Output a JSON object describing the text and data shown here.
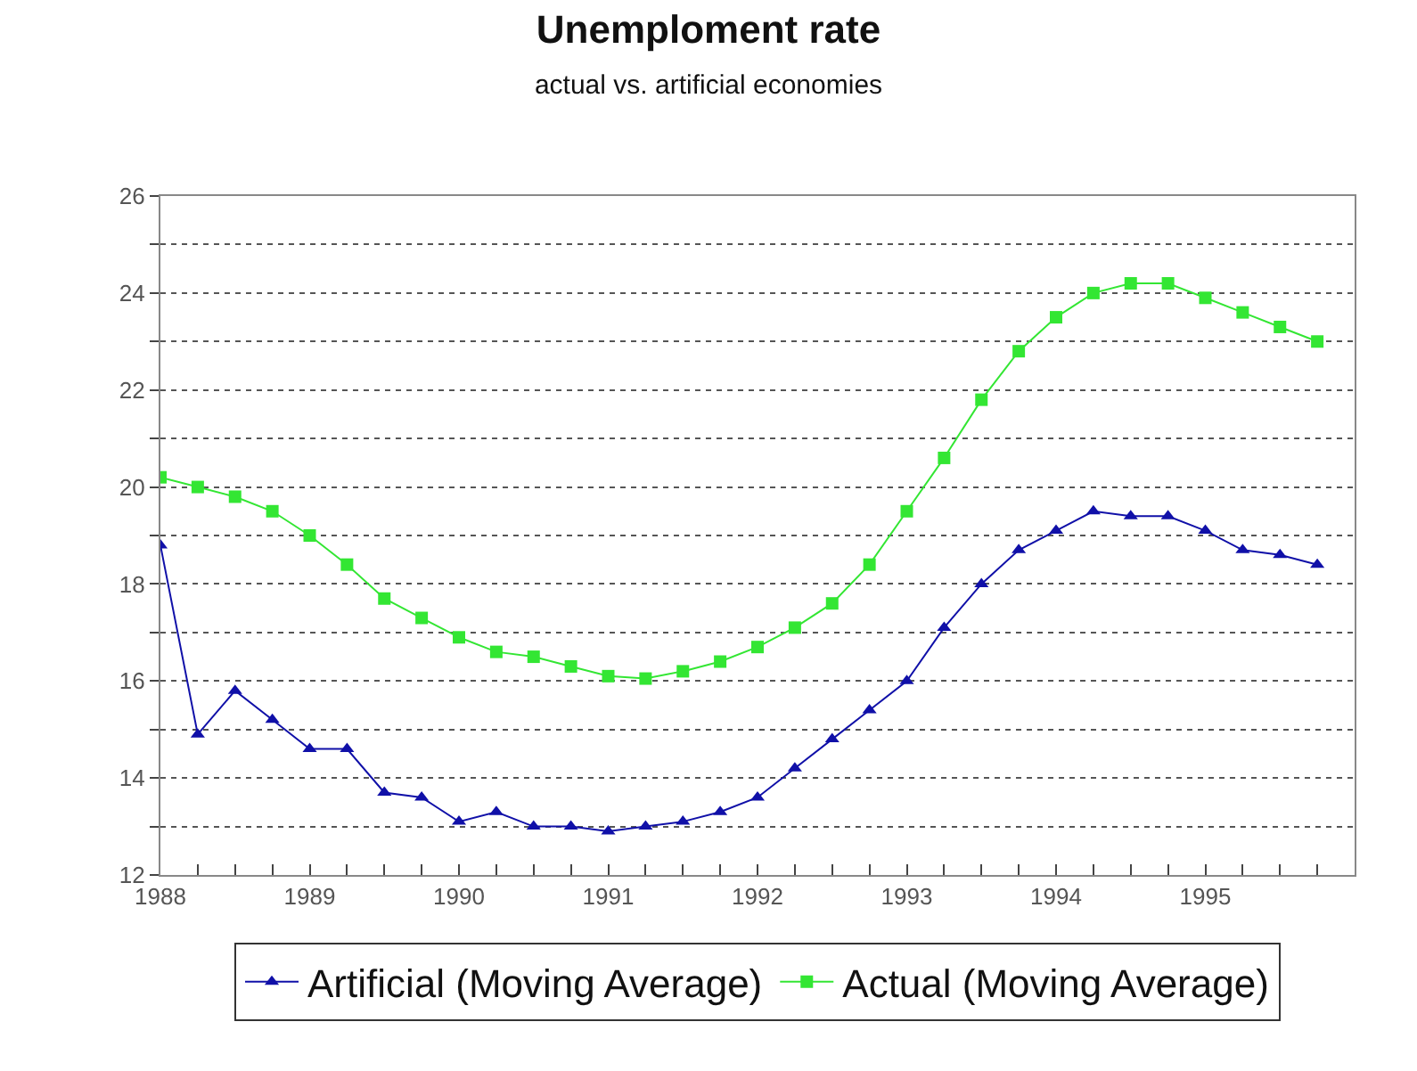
{
  "chart_data": {
    "type": "line",
    "title": "Unemploment rate",
    "subtitle": "actual vs. artificial economies",
    "x": [
      1988,
      1988.25,
      1988.5,
      1988.75,
      1989,
      1989.25,
      1989.5,
      1989.75,
      1990,
      1990.25,
      1990.5,
      1990.75,
      1991,
      1991.25,
      1991.5,
      1991.75,
      1992,
      1992.25,
      1992.5,
      1992.75,
      1993,
      1993.25,
      1993.5,
      1993.75,
      1994,
      1994.25,
      1994.5,
      1994.75,
      1995,
      1995.25,
      1995.5,
      1995.75
    ],
    "series": [
      {
        "name": "Artificial (Moving Average)",
        "color": "#1010a8",
        "marker": "triangle",
        "values": [
          18.8,
          14.9,
          15.8,
          15.2,
          14.6,
          14.6,
          13.7,
          13.6,
          13.1,
          13.3,
          13.0,
          13.0,
          12.9,
          13.0,
          13.1,
          13.3,
          13.6,
          14.2,
          14.8,
          15.4,
          16.0,
          17.1,
          18.0,
          18.7,
          19.1,
          19.5,
          19.4,
          19.4,
          19.1,
          18.7,
          18.6,
          18.4
        ]
      },
      {
        "name": "Actual (Moving Average)",
        "color": "#33e633",
        "marker": "square",
        "values": [
          20.2,
          20.0,
          19.8,
          19.5,
          19.0,
          18.4,
          17.7,
          17.3,
          16.9,
          16.6,
          16.5,
          16.3,
          16.1,
          16.05,
          16.2,
          16.4,
          16.7,
          17.1,
          17.6,
          18.4,
          19.5,
          20.6,
          21.8,
          22.8,
          23.5,
          24.0,
          24.2,
          24.2,
          23.9,
          23.6,
          23.3,
          23.0
        ]
      }
    ],
    "xlim": [
      1988,
      1996
    ],
    "xticks": [
      1988,
      {
        "value": 1988.25,
        "label": null
      },
      {
        "value": 1988.5,
        "label": null
      },
      {
        "value": 1988.75,
        "label": null
      },
      1989,
      {
        "value": 1989.25,
        "label": null
      },
      {
        "value": 1989.5,
        "label": null
      },
      {
        "value": 1989.75,
        "label": null
      },
      1990,
      {
        "value": 1990.25,
        "label": null
      },
      {
        "value": 1990.5,
        "label": null
      },
      {
        "value": 1990.75,
        "label": null
      },
      1991,
      {
        "value": 1991.25,
        "label": null
      },
      {
        "value": 1991.5,
        "label": null
      },
      {
        "value": 1991.75,
        "label": null
      },
      1992,
      {
        "value": 1992.25,
        "label": null
      },
      {
        "value": 1992.5,
        "label": null
      },
      {
        "value": 1992.75,
        "label": null
      },
      1993,
      {
        "value": 1993.25,
        "label": null
      },
      {
        "value": 1993.5,
        "label": null
      },
      {
        "value": 1993.75,
        "label": null
      },
      1994,
      {
        "value": 1994.25,
        "label": null
      },
      {
        "value": 1994.5,
        "label": null
      },
      {
        "value": 1994.75,
        "label": null
      },
      1995,
      {
        "value": 1995.25,
        "label": null
      },
      {
        "value": 1995.5,
        "label": null
      },
      {
        "value": 1995.75,
        "label": null
      }
    ],
    "ylim": [
      12,
      26
    ],
    "yticks": [
      12,
      {
        "value": 13,
        "label": null
      },
      14,
      {
        "value": 15,
        "label": null
      },
      16,
      {
        "value": 17,
        "label": null
      },
      18,
      {
        "value": 19,
        "label": null
      },
      20,
      {
        "value": 21,
        "label": null
      },
      22,
      {
        "value": 23,
        "label": null
      },
      24,
      {
        "value": 25,
        "label": null
      },
      26
    ],
    "grid": "y",
    "legend": "bottom",
    "line_style": "solid"
  }
}
